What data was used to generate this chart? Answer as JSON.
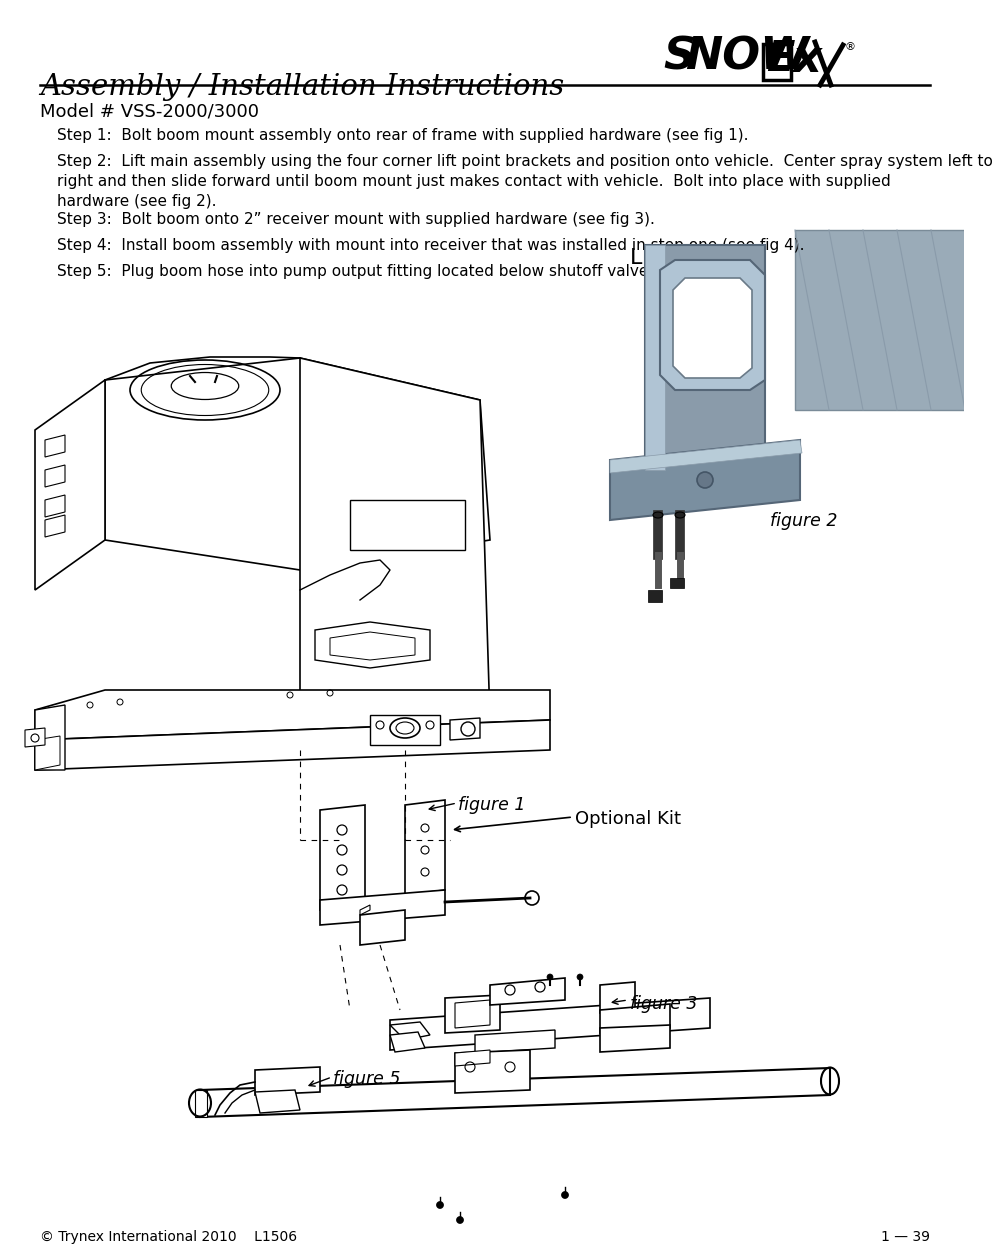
{
  "title": "Assembly / Installation Instructions",
  "subtitle": "Model # VSS-2000/3000",
  "bg_color": "#ffffff",
  "text_color": "#000000",
  "title_fontsize": 21,
  "subtitle_fontsize": 13,
  "body_fontsize": 11,
  "step1": "Step 1:  Bolt boom mount assembly onto rear of frame with supplied hardware (see fig 1).",
  "step2": "Step 2:  Lift main assembly using the four corner lift point brackets and position onto vehicle.  Center spray system left to\nright and then slide forward until boom mount just makes contact with vehicle.  Bolt into place with supplied\nhardware (see fig 2).",
  "step3": "Step 3:  Bolt boom onto 2” receiver mount with supplied hardware (see fig 3).",
  "step4": "Step 4:  Install boom assembly with mount into receiver that was installed in step one (see fig 4).",
  "step5": "Step 5:  Plug boom hose into pump output fitting located below shutoff valve (see fig 5).",
  "footer_left": "© Trynex International 2010    L1506",
  "footer_right": "1 — 39",
  "lift_point_label": "Lift Point",
  "figure2_label": "figure 2",
  "figure1_label": "figure 1",
  "figure3_label": "figure 3",
  "figure5_label": "figure 5",
  "optional_kit_label": "Optional Kit",
  "gray1": "#8a9baa",
  "gray2": "#6e7f8e",
  "gray3": "#b0bec8",
  "gray4": "#c8d4dc",
  "dark": "#1a1a1a",
  "mid": "#555555",
  "light_line": "#888888"
}
